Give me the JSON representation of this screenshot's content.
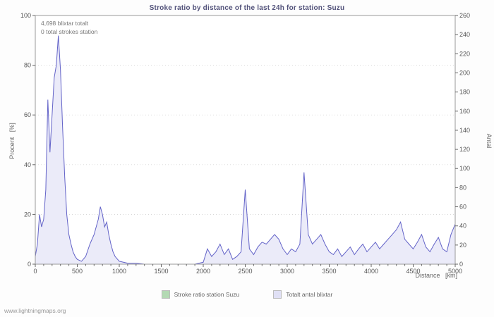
{
  "footer_text": "www.lightningmaps.org",
  "chart_data": {
    "type": "area",
    "title": "Stroke ratio by distance of the last 24h for station: Suzu",
    "x_label": "Distance   [km]",
    "y_left_label": "Procent   [%]",
    "y_right_label": "Antal",
    "x_range": [
      0,
      5000
    ],
    "y_left_range": [
      0,
      100
    ],
    "y_right_range": [
      0,
      260
    ],
    "x_tick_step": 500,
    "x_minor_tick_step": 100,
    "y_left_tick_step": 20,
    "y_right_tick_step": 20,
    "grid": "horizontal-dotted",
    "legend_position": "bottom-center",
    "annotations": [
      "4,698 blixtar totalt",
      "0 total strokes station"
    ],
    "series": [
      {
        "name": "Stroke ratio station Suzu",
        "axis": "left",
        "line_color": "#8fbc8f",
        "fill_color": "none",
        "legend_color": "#b3d9b3",
        "points": [
          [
            0,
            0
          ],
          [
            5000,
            0
          ]
        ]
      },
      {
        "name": "Totalt antal blixtar",
        "axis": "right",
        "line_color": "#6363c8",
        "fill_color": "#ebebf9",
        "legend_color": "#e0e0f5",
        "points": [
          [
            0,
            8
          ],
          [
            25,
            21
          ],
          [
            50,
            52
          ],
          [
            75,
            39
          ],
          [
            100,
            47
          ],
          [
            125,
            78
          ],
          [
            150,
            172
          ],
          [
            175,
            117
          ],
          [
            200,
            156
          ],
          [
            225,
            195
          ],
          [
            250,
            208
          ],
          [
            275,
            239
          ],
          [
            300,
            203
          ],
          [
            325,
            143
          ],
          [
            350,
            91
          ],
          [
            375,
            52
          ],
          [
            400,
            31
          ],
          [
            425,
            21
          ],
          [
            450,
            13
          ],
          [
            475,
            8
          ],
          [
            500,
            5
          ],
          [
            550,
            3
          ],
          [
            600,
            8
          ],
          [
            650,
            21
          ],
          [
            700,
            31
          ],
          [
            750,
            47
          ],
          [
            775,
            60
          ],
          [
            800,
            52
          ],
          [
            825,
            39
          ],
          [
            850,
            44
          ],
          [
            875,
            31
          ],
          [
            900,
            21
          ],
          [
            925,
            13
          ],
          [
            950,
            8
          ],
          [
            1000,
            3
          ],
          [
            1100,
            1
          ],
          [
            1200,
            1
          ],
          [
            1300,
            0
          ],
          [
            1400,
            0
          ],
          [
            1500,
            0
          ],
          [
            1600,
            0
          ],
          [
            1700,
            0
          ],
          [
            1800,
            0
          ],
          [
            1900,
            0
          ],
          [
            2000,
            2
          ],
          [
            2050,
            16
          ],
          [
            2100,
            8
          ],
          [
            2150,
            13
          ],
          [
            2200,
            21
          ],
          [
            2250,
            10
          ],
          [
            2300,
            16
          ],
          [
            2350,
            5
          ],
          [
            2400,
            8
          ],
          [
            2450,
            13
          ],
          [
            2500,
            78
          ],
          [
            2550,
            16
          ],
          [
            2600,
            10
          ],
          [
            2650,
            18
          ],
          [
            2700,
            23
          ],
          [
            2750,
            21
          ],
          [
            2800,
            26
          ],
          [
            2850,
            31
          ],
          [
            2900,
            26
          ],
          [
            2950,
            16
          ],
          [
            3000,
            10
          ],
          [
            3050,
            16
          ],
          [
            3100,
            13
          ],
          [
            3150,
            21
          ],
          [
            3200,
            96
          ],
          [
            3250,
            31
          ],
          [
            3300,
            21
          ],
          [
            3350,
            26
          ],
          [
            3400,
            31
          ],
          [
            3450,
            21
          ],
          [
            3500,
            13
          ],
          [
            3550,
            10
          ],
          [
            3600,
            16
          ],
          [
            3650,
            8
          ],
          [
            3700,
            13
          ],
          [
            3750,
            18
          ],
          [
            3800,
            10
          ],
          [
            3850,
            16
          ],
          [
            3900,
            21
          ],
          [
            3950,
            13
          ],
          [
            4000,
            18
          ],
          [
            4050,
            23
          ],
          [
            4100,
            16
          ],
          [
            4150,
            21
          ],
          [
            4200,
            26
          ],
          [
            4250,
            31
          ],
          [
            4300,
            36
          ],
          [
            4350,
            44
          ],
          [
            4400,
            26
          ],
          [
            4450,
            21
          ],
          [
            4500,
            16
          ],
          [
            4550,
            23
          ],
          [
            4600,
            31
          ],
          [
            4650,
            18
          ],
          [
            4700,
            13
          ],
          [
            4750,
            21
          ],
          [
            4800,
            28
          ],
          [
            4850,
            16
          ],
          [
            4900,
            13
          ],
          [
            4950,
            31
          ],
          [
            5000,
            42
          ]
        ]
      }
    ]
  }
}
